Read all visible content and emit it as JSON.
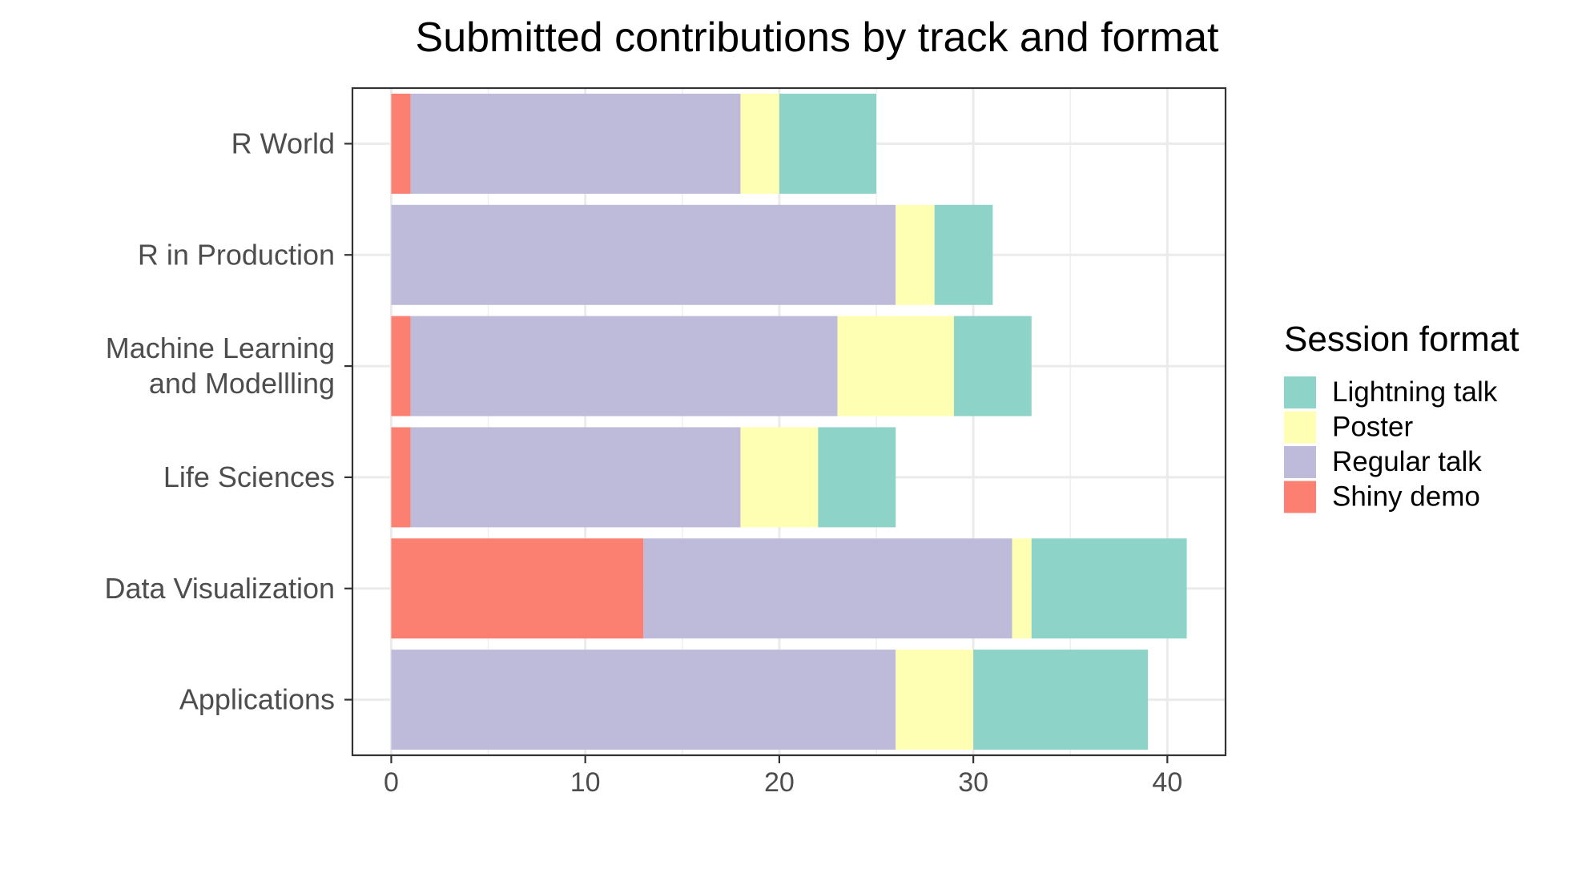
{
  "chart_data": {
    "type": "bar",
    "orientation": "horizontal",
    "stacked": true,
    "title": "Submitted contributions by track and format",
    "xlabel": "",
    "ylabel": "",
    "xlim": [
      -2,
      43
    ],
    "x_ticks": [
      0,
      10,
      20,
      30,
      40
    ],
    "grid": true,
    "categories": [
      "R World",
      "R in Production",
      "Machine Learning\nand Modellling",
      "Life Sciences",
      "Data Visualization",
      "Applications"
    ],
    "stack_order": [
      "Shiny demo",
      "Regular talk",
      "Poster",
      "Lightning talk"
    ],
    "series": [
      {
        "name": "Shiny demo",
        "color": "#FB8072",
        "values": [
          1,
          0,
          1,
          1,
          13,
          0
        ]
      },
      {
        "name": "Regular talk",
        "color": "#BEBADA",
        "values": [
          17,
          26,
          22,
          17,
          19,
          26
        ]
      },
      {
        "name": "Poster",
        "color": "#FFFFB3",
        "values": [
          2,
          2,
          6,
          4,
          1,
          4
        ]
      },
      {
        "name": "Lightning talk",
        "color": "#8DD3C7",
        "values": [
          5,
          3,
          4,
          4,
          8,
          9
        ]
      }
    ],
    "legend": {
      "title": "Session format",
      "position": "right",
      "entries": [
        "Lightning talk",
        "Poster",
        "Regular talk",
        "Shiny demo"
      ]
    }
  }
}
